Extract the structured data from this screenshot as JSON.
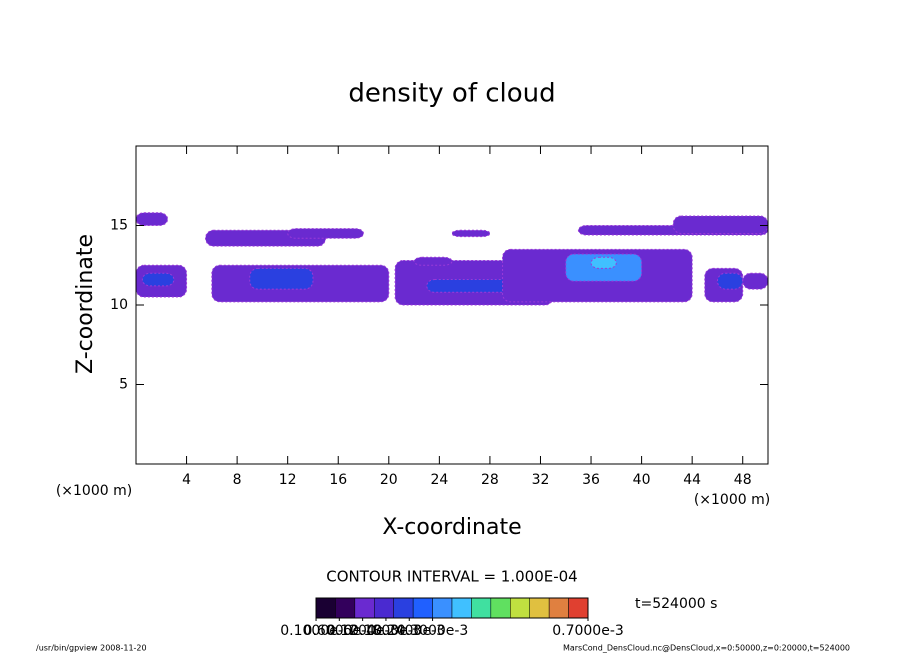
{
  "chart_data": {
    "type": "contour",
    "title": "density of cloud",
    "xlabel": "X-coordinate",
    "ylabel": "Z-coordinate",
    "x_unit": "(×1000 m)",
    "y_unit": "(×1000 m)",
    "xlim": [
      0,
      50
    ],
    "xticks": [
      4,
      8,
      12,
      16,
      20,
      24,
      28,
      32,
      36,
      40,
      44,
      48
    ],
    "ylim": [
      0,
      20
    ],
    "yticks": [
      5,
      10,
      15
    ],
    "regions": [
      {
        "x": [
          0,
          2.5
        ],
        "z": [
          15,
          15.8
        ],
        "value": 0.0001
      },
      {
        "x": [
          0,
          4
        ],
        "z": [
          10.5,
          12.5
        ],
        "value": 0.0001
      },
      {
        "x": [
          0.5,
          3
        ],
        "z": [
          11.2,
          12
        ],
        "value": 0.0002
      },
      {
        "x": [
          5.5,
          15
        ],
        "z": [
          13.7,
          14.7
        ],
        "value": 0.0001
      },
      {
        "x": [
          12,
          18
        ],
        "z": [
          14.2,
          14.8
        ],
        "value": 0.0001
      },
      {
        "x": [
          6,
          20
        ],
        "z": [
          10.2,
          12.5
        ],
        "value": 0.0001
      },
      {
        "x": [
          9,
          14
        ],
        "z": [
          11,
          12.3
        ],
        "value": 0.0002
      },
      {
        "x": [
          20.5,
          33
        ],
        "z": [
          10,
          12.8
        ],
        "value": 0.0001
      },
      {
        "x": [
          23,
          30
        ],
        "z": [
          10.8,
          11.6
        ],
        "value": 0.0002
      },
      {
        "x": [
          22,
          25
        ],
        "z": [
          12.5,
          13
        ],
        "value": 0.0001
      },
      {
        "x": [
          25,
          28
        ],
        "z": [
          14.3,
          14.7
        ],
        "value": 0.0001
      },
      {
        "x": [
          29,
          44
        ],
        "z": [
          10.2,
          13.5
        ],
        "value": 0.0001
      },
      {
        "x": [
          34,
          40
        ],
        "z": [
          11.5,
          13.2
        ],
        "value": 0.0003
      },
      {
        "x": [
          36,
          38
        ],
        "z": [
          12.3,
          13
        ],
        "value": 0.00035
      },
      {
        "x": [
          35,
          50
        ],
        "z": [
          14.4,
          15
        ],
        "value": 0.0001
      },
      {
        "x": [
          42.5,
          50
        ],
        "z": [
          14.5,
          15.6
        ],
        "value": 0.0001
      },
      {
        "x": [
          45,
          48
        ],
        "z": [
          10.2,
          12.3
        ],
        "value": 0.0001
      },
      {
        "x": [
          46,
          48
        ],
        "z": [
          11,
          12
        ],
        "value": 0.0002
      },
      {
        "x": [
          48,
          50
        ],
        "z": [
          11,
          12
        ],
        "value": 0.0001
      }
    ],
    "contour_interval": "CONTOUR INTERVAL = 1.000E-04",
    "time_label": "t=524000 s",
    "colorbar": {
      "levels": [
        0,
        5e-05,
        0.0001,
        0.00015,
        0.0002,
        0.00025,
        0.0003,
        0.00035,
        0.0004,
        0.00045,
        0.0005,
        0.00055,
        0.0006,
        0.00065,
        0.0007
      ],
      "colors": [
        "#1a0033",
        "#33005c",
        "#6a2ad0",
        "#4a2ad0",
        "#2a40e0",
        "#2060ff",
        "#3a90ff",
        "#40c0ff",
        "#40e0a0",
        "#60e060",
        "#c0e040",
        "#e0c040",
        "#e08040",
        "#e04030"
      ],
      "ticks": [
        {
          "value": 1e-07,
          "label": "0.1000e-6"
        },
        {
          "value": 6e-05,
          "label": "0.6000e-4"
        },
        {
          "value": 0.00012,
          "label": "0.1200e-3"
        },
        {
          "value": 0.00018,
          "label": "0.1800e-3"
        },
        {
          "value": 0.00024,
          "label": "0.2400e-3"
        },
        {
          "value": 0.0003,
          "label": "0.3000e-3"
        },
        {
          "value": 0.0007,
          "label": "0.7000e-3"
        }
      ]
    },
    "footer_left": "/usr/bin/gpview  2008-11-20",
    "footer_right": "MarsCond_DensCloud.nc@DensCloud,x=0:50000,z=0:20000,t=524000"
  }
}
